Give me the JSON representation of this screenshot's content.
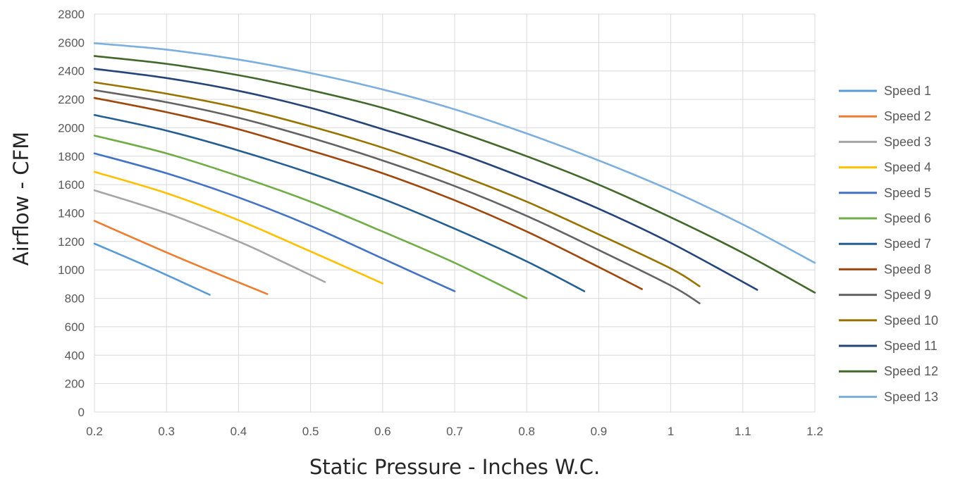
{
  "chart_data": {
    "type": "line",
    "title": "",
    "xlabel": "Static Pressure - Inches W.C.",
    "ylabel": "Airflow - CFM",
    "xlim": [
      0.2,
      1.2
    ],
    "ylim": [
      0,
      2800
    ],
    "x_ticks": [
      "0.2",
      "0.3",
      "0.4",
      "0.5",
      "0.6",
      "0.7",
      "0.8",
      "0.9",
      "1",
      "1.1",
      "1.2"
    ],
    "y_ticks": [
      "0",
      "200",
      "400",
      "600",
      "800",
      "1000",
      "1200",
      "1400",
      "1600",
      "1800",
      "2000",
      "2200",
      "2400",
      "2600",
      "2800"
    ],
    "grid": true,
    "legend_position": "right",
    "series": [
      {
        "name": "Speed 1",
        "color": "#5B9BD5",
        "points": [
          [
            0.2,
            1185
          ],
          [
            0.28,
            1010
          ],
          [
            0.36,
            825
          ]
        ]
      },
      {
        "name": "Speed 2",
        "color": "#ED7D31",
        "points": [
          [
            0.2,
            1345
          ],
          [
            0.32,
            1080
          ],
          [
            0.44,
            830
          ]
        ]
      },
      {
        "name": "Speed 3",
        "color": "#A5A5A5",
        "points": [
          [
            0.2,
            1560
          ],
          [
            0.3,
            1400
          ],
          [
            0.4,
            1200
          ],
          [
            0.46,
            1060
          ],
          [
            0.52,
            915
          ]
        ]
      },
      {
        "name": "Speed 4",
        "color": "#FFC000",
        "points": [
          [
            0.2,
            1690
          ],
          [
            0.3,
            1540
          ],
          [
            0.4,
            1350
          ],
          [
            0.5,
            1130
          ],
          [
            0.6,
            905
          ]
        ]
      },
      {
        "name": "Speed 5",
        "color": "#4472C4",
        "points": [
          [
            0.2,
            1820
          ],
          [
            0.3,
            1680
          ],
          [
            0.4,
            1510
          ],
          [
            0.5,
            1310
          ],
          [
            0.6,
            1080
          ],
          [
            0.7,
            850
          ]
        ]
      },
      {
        "name": "Speed 6",
        "color": "#70AD47",
        "points": [
          [
            0.2,
            1945
          ],
          [
            0.3,
            1820
          ],
          [
            0.4,
            1660
          ],
          [
            0.5,
            1480
          ],
          [
            0.6,
            1270
          ],
          [
            0.7,
            1050
          ],
          [
            0.8,
            800
          ]
        ]
      },
      {
        "name": "Speed 7",
        "color": "#255E91",
        "points": [
          [
            0.2,
            2090
          ],
          [
            0.3,
            1980
          ],
          [
            0.4,
            1840
          ],
          [
            0.5,
            1680
          ],
          [
            0.6,
            1500
          ],
          [
            0.7,
            1290
          ],
          [
            0.8,
            1060
          ],
          [
            0.88,
            850
          ]
        ]
      },
      {
        "name": "Speed 8",
        "color": "#9E480E",
        "points": [
          [
            0.2,
            2210
          ],
          [
            0.3,
            2110
          ],
          [
            0.4,
            1990
          ],
          [
            0.5,
            1840
          ],
          [
            0.6,
            1680
          ],
          [
            0.7,
            1490
          ],
          [
            0.8,
            1270
          ],
          [
            0.9,
            1020
          ],
          [
            0.96,
            865
          ]
        ]
      },
      {
        "name": "Speed 9",
        "color": "#636363",
        "points": [
          [
            0.2,
            2265
          ],
          [
            0.3,
            2180
          ],
          [
            0.4,
            2070
          ],
          [
            0.5,
            1930
          ],
          [
            0.6,
            1770
          ],
          [
            0.7,
            1590
          ],
          [
            0.8,
            1380
          ],
          [
            0.9,
            1140
          ],
          [
            1.0,
            890
          ],
          [
            1.04,
            765
          ]
        ]
      },
      {
        "name": "Speed 10",
        "color": "#997300",
        "points": [
          [
            0.2,
            2320
          ],
          [
            0.3,
            2240
          ],
          [
            0.4,
            2140
          ],
          [
            0.5,
            2010
          ],
          [
            0.6,
            1860
          ],
          [
            0.7,
            1680
          ],
          [
            0.8,
            1480
          ],
          [
            0.9,
            1250
          ],
          [
            1.0,
            1010
          ],
          [
            1.04,
            885
          ]
        ]
      },
      {
        "name": "Speed 11",
        "color": "#264478",
        "points": [
          [
            0.2,
            2415
          ],
          [
            0.3,
            2350
          ],
          [
            0.4,
            2260
          ],
          [
            0.5,
            2140
          ],
          [
            0.6,
            1990
          ],
          [
            0.7,
            1830
          ],
          [
            0.8,
            1640
          ],
          [
            0.9,
            1430
          ],
          [
            1.0,
            1190
          ],
          [
            1.12,
            860
          ]
        ]
      },
      {
        "name": "Speed 12",
        "color": "#43682B",
        "points": [
          [
            0.2,
            2505
          ],
          [
            0.3,
            2450
          ],
          [
            0.4,
            2370
          ],
          [
            0.5,
            2265
          ],
          [
            0.6,
            2140
          ],
          [
            0.7,
            1980
          ],
          [
            0.8,
            1800
          ],
          [
            0.9,
            1600
          ],
          [
            1.0,
            1370
          ],
          [
            1.1,
            1120
          ],
          [
            1.2,
            840
          ]
        ]
      },
      {
        "name": "Speed 13",
        "color": "#7CAFDD",
        "points": [
          [
            0.2,
            2595
          ],
          [
            0.3,
            2550
          ],
          [
            0.4,
            2480
          ],
          [
            0.5,
            2385
          ],
          [
            0.6,
            2270
          ],
          [
            0.7,
            2130
          ],
          [
            0.8,
            1960
          ],
          [
            0.9,
            1770
          ],
          [
            1.0,
            1560
          ],
          [
            1.1,
            1320
          ],
          [
            1.2,
            1050
          ]
        ]
      }
    ]
  }
}
